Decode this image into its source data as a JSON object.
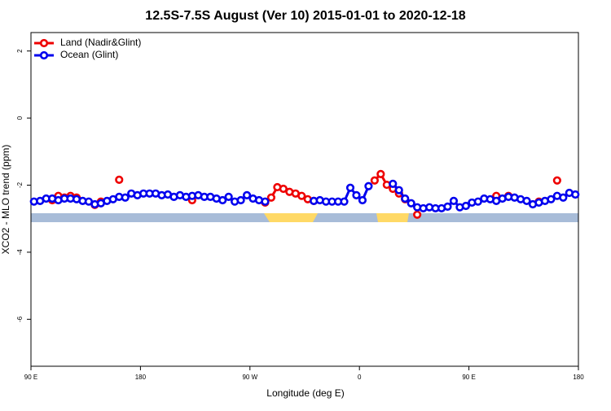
{
  "chart_data": {
    "type": "line",
    "title": "12.5S-7.5S August (Ver 10)   2015-01-01 to 2020-12-18",
    "x_label": "Longitude (deg E)",
    "y_label": "XCO2 - MLO trend (ppm)",
    "x": [
      -267.5,
      -262.5,
      -257.5,
      -252.5,
      -247.5,
      -242.5,
      -237.5,
      -232.5,
      -227.5,
      -222.5,
      -217.5,
      -212.5,
      -207.5,
      -202.5,
      -197.5,
      -192.5,
      -187.5,
      -182.5,
      -177.5,
      -172.5,
      -167.5,
      -162.5,
      -157.5,
      -152.5,
      -147.5,
      -142.5,
      -137.5,
      -132.5,
      -127.5,
      -122.5,
      -117.5,
      -112.5,
      -107.5,
      -102.5,
      -97.5,
      -92.5,
      -87.5,
      -82.5,
      -77.5,
      -72.5,
      -67.5,
      -62.5,
      -57.5,
      -52.5,
      -47.5,
      -42.5,
      -37.5,
      -32.5,
      -27.5,
      -22.5,
      -17.5,
      -12.5,
      -7.5,
      -2.5,
      2.5,
      7.5,
      12.5,
      17.5,
      22.5,
      27.5,
      32.5,
      37.5,
      42.5,
      47.5,
      52.5,
      57.5,
      62.5,
      67.5,
      72.5,
      77.5,
      82.5,
      87.5,
      92.5,
      97.5,
      102.5,
      107.5,
      112.5,
      117.5,
      122.5,
      127.5,
      132.5,
      137.5,
      142.5,
      147.5,
      152.5,
      157.5,
      162.5,
      167.5,
      172.5,
      177.5
    ],
    "series": [
      {
        "name": "Land (Nadir&Glint)",
        "color": "#ee0000",
        "values": [
          null,
          null,
          null,
          -2.45,
          -2.32,
          -2.37,
          -2.32,
          -2.37,
          null,
          null,
          -2.59,
          -2.49,
          null,
          null,
          -1.84,
          null,
          null,
          null,
          null,
          null,
          null,
          null,
          null,
          null,
          null,
          null,
          -2.45,
          null,
          null,
          null,
          null,
          null,
          null,
          null,
          null,
          null,
          null,
          null,
          -2.52,
          -2.37,
          -2.06,
          -2.11,
          -2.2,
          -2.25,
          -2.32,
          -2.42,
          -2.47,
          null,
          null,
          null,
          null,
          null,
          null,
          null,
          null,
          null,
          -1.86,
          -1.67,
          -1.99,
          -2.11,
          -2.25,
          -2.42,
          null,
          -2.88,
          null,
          null,
          null,
          null,
          null,
          null,
          null,
          null,
          null,
          null,
          null,
          null,
          -2.32,
          null,
          -2.32,
          null,
          null,
          null,
          null,
          -2.49,
          null,
          null,
          -1.86,
          null,
          null,
          null
        ]
      },
      {
        "name": "Ocean (Glint)",
        "color": "#0000ee",
        "values": [
          -2.49,
          -2.47,
          -2.4,
          -2.4,
          -2.45,
          -2.4,
          -2.4,
          -2.42,
          -2.47,
          -2.49,
          -2.57,
          -2.54,
          -2.47,
          -2.42,
          -2.35,
          -2.37,
          -2.25,
          -2.3,
          -2.25,
          -2.25,
          -2.25,
          -2.3,
          -2.28,
          -2.35,
          -2.3,
          -2.35,
          -2.32,
          -2.3,
          -2.35,
          -2.35,
          -2.4,
          -2.45,
          -2.35,
          -2.49,
          -2.45,
          -2.3,
          -2.4,
          -2.45,
          -2.49,
          null,
          null,
          null,
          null,
          null,
          null,
          null,
          -2.47,
          -2.45,
          -2.49,
          -2.49,
          -2.49,
          -2.49,
          -2.08,
          -2.3,
          -2.45,
          -2.03,
          null,
          null,
          null,
          -1.96,
          -2.15,
          -2.4,
          -2.54,
          -2.66,
          -2.69,
          -2.66,
          -2.69,
          -2.69,
          -2.64,
          -2.47,
          -2.66,
          -2.62,
          -2.52,
          -2.49,
          -2.4,
          -2.42,
          -2.47,
          -2.4,
          -2.35,
          -2.37,
          -2.42,
          -2.47,
          -2.57,
          -2.52,
          -2.47,
          -2.42,
          -2.32,
          -2.37,
          -2.23,
          -2.28
        ]
      }
    ],
    "xlim": [
      -270,
      180
    ],
    "xticks": [
      {
        "value": -270,
        "label": "90 E"
      },
      {
        "value": -180,
        "label": "180"
      },
      {
        "value": -90,
        "label": "90 W"
      },
      0,
      {
        "value": 90,
        "label": "90 E"
      },
      180
    ],
    "ylim": [
      -7.4,
      2.55
    ],
    "yticks": [
      -6,
      -4,
      -2,
      0,
      2
    ],
    "legend": "top-left"
  }
}
